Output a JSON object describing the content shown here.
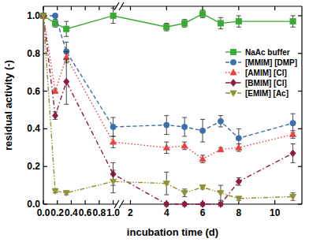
{
  "chart_data": {
    "type": "line",
    "x_label": "incubation time (d)",
    "y_label": "residual activity (-)",
    "x": [
      0,
      0.17,
      0.33,
      1,
      4,
      5,
      6,
      7,
      8,
      11
    ],
    "xlim": [
      0,
      11.5
    ],
    "x_break": [
      1.05,
      1.5
    ],
    "xticks": [
      {
        "value": 0,
        "label": "0.0"
      },
      0.2,
      0.4,
      0.6,
      0.8,
      {
        "value": 1,
        "label": "1.0"
      },
      2,
      4,
      6,
      8,
      10
    ],
    "ylim": [
      0,
      1.05
    ],
    "yticks": [
      {
        "value": 0,
        "label": "0.0"
      },
      0.2,
      0.4,
      0.6,
      0.8,
      {
        "value": 1,
        "label": "1.0"
      }
    ],
    "legend": "right",
    "series": [
      {
        "name": "NaAc buffer",
        "color": "#3aa935",
        "marker": "square",
        "line_style": "solid",
        "values": [
          1.0,
          0.96,
          0.93,
          1.0,
          0.94,
          0.96,
          1.01,
          0.96,
          0.97,
          0.97
        ],
        "errors": [
          0,
          0.02,
          0.04,
          0.04,
          0.02,
          0.02,
          0.02,
          0.03,
          0.03,
          0.03
        ]
      },
      {
        "name": "[MMIM] [DMP]",
        "color": "#3d6fa8",
        "marker": "circle",
        "line_style": "dashed",
        "values": [
          1.0,
          1.0,
          0.81,
          0.41,
          0.42,
          0.41,
          0.39,
          0.44,
          0.35,
          0.43
        ],
        "errors": [
          0,
          0.01,
          0.05,
          0.05,
          0.05,
          0.05,
          0.06,
          0.03,
          0.05,
          0.05
        ]
      },
      {
        "name": "[AMIM] [Cl]",
        "color": "#e8433e",
        "marker": "triangle-up",
        "line_style": "dotted",
        "values": [
          1.0,
          0.6,
          0.78,
          0.33,
          0.3,
          0.31,
          0.24,
          0.29,
          0.3,
          0.37
        ],
        "errors": [
          0,
          0.01,
          0.03,
          0.03,
          0.03,
          0.02,
          0.02,
          0.01,
          0.02,
          0.02
        ]
      },
      {
        "name": "[BMIM] [Cl]",
        "color": "#8e1b3e",
        "marker": "diamond",
        "line_style": "dashdot",
        "values": [
          1.0,
          0.47,
          0.65,
          0.16,
          0.0,
          0.0,
          0.0,
          0.0,
          0.12,
          0.27
        ],
        "errors": [
          0,
          0.02,
          0.12,
          0.06,
          0.01,
          0.01,
          0.01,
          0.01,
          0.02,
          0.05
        ]
      },
      {
        "name": "[EMIM] [Ac]",
        "color": "#8f9132",
        "marker": "triangle-down",
        "line_style": "dashdotdot",
        "values": [
          1.0,
          0.07,
          0.06,
          0.12,
          0.11,
          0.06,
          0.09,
          0.06,
          0.03,
          0.04
        ],
        "errors": [
          0,
          0.01,
          0.01,
          0.06,
          0.06,
          0.02,
          0.01,
          0.04,
          0.01,
          0.02
        ]
      }
    ]
  }
}
